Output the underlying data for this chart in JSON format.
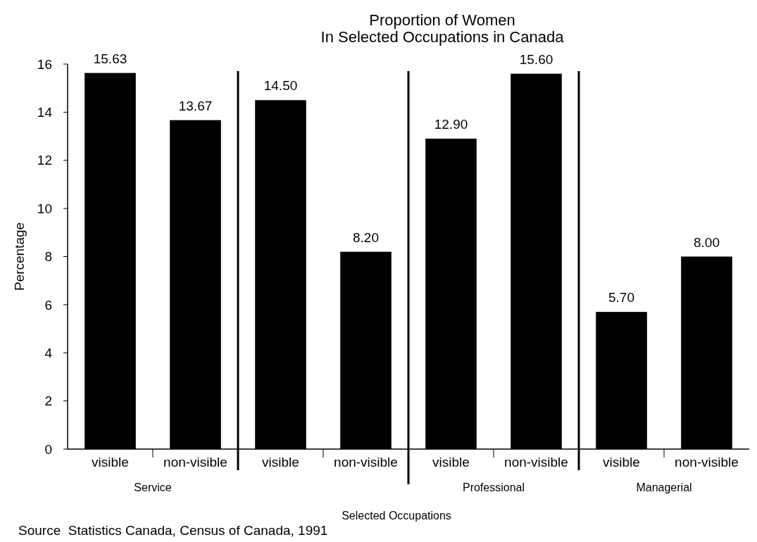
{
  "chart_data": {
    "type": "bar",
    "title": "Proportion of Women\nIn Selected Occupations in Canada",
    "xlabel": "Selected Occupations",
    "ylabel": "Percentage",
    "categories": [
      "visible",
      "non-visible",
      "visible",
      "non-visible",
      "visible",
      "non-visible",
      "visible",
      "non-visible"
    ],
    "values": [
      15.63,
      13.67,
      14.5,
      8.2,
      12.9,
      15.6,
      5.7,
      8.0
    ],
    "color": "#000000",
    "ylim": [
      0,
      16
    ],
    "yticks": [
      0,
      2,
      4,
      6,
      8,
      10,
      12,
      14,
      16
    ],
    "grid": false,
    "data_labels": true,
    "value_labels": [
      "15.63",
      "13.67",
      "14.50",
      "8.20",
      "12.90",
      "15.60",
      "5.70",
      "8.00"
    ],
    "annotations": [
      "Service",
      "Professional",
      "Managerial",
      "Source  Statistics Canada, Census of Canada, 1991"
    ]
  }
}
